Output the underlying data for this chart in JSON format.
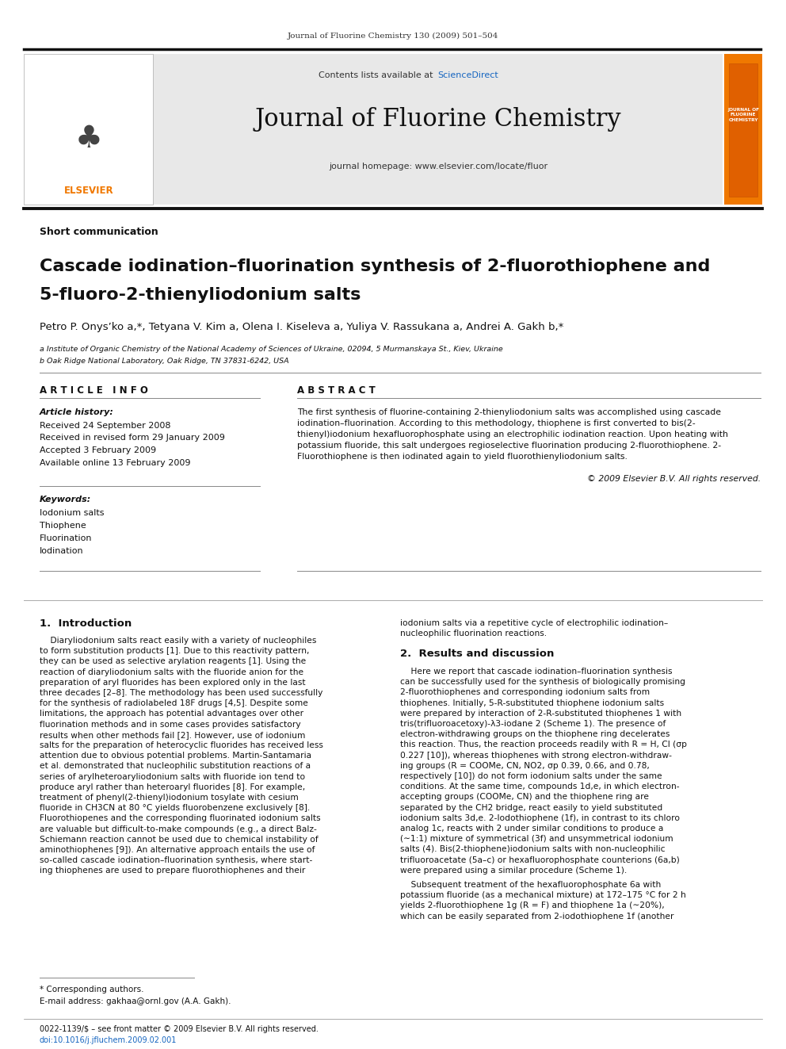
{
  "page_width": 9.92,
  "page_height": 13.23,
  "bg_color": "#ffffff",
  "journal_ref": "Journal of Fluorine Chemistry 130 (2009) 501–504",
  "header_bg": "#e8e8e8",
  "sciencedirect_color": "#1565c0",
  "link_color": "#1565c0",
  "orange_color": "#f07800",
  "section_type": "Short communication",
  "article_title_line1": "Cascade iodination–fluorination synthesis of 2-fluorothiophene and",
  "article_title_line2": "5-fluoro-2-thienyliodonium salts",
  "authors": "Petro P. Onys’ko a,*, Tetyana V. Kim a, Olena I. Kiseleva a, Yuliya V. Rassukana a, Andrei A. Gakh b,*",
  "affil_a": "a Institute of Organic Chemistry of the National Academy of Sciences of Ukraine, 02094, 5 Murmanskaya St., Kiev, Ukraine",
  "affil_b": "b Oak Ridge National Laboratory, Oak Ridge, TN 37831-6242, USA",
  "article_info_header": "A R T I C L E   I N F O",
  "abstract_header": "A B S T R A C T",
  "article_history_label": "Article history:",
  "received1": "Received 24 September 2008",
  "received2": "Received in revised form 29 January 2009",
  "accepted": "Accepted 3 February 2009",
  "available": "Available online 13 February 2009",
  "keywords_label": "Keywords:",
  "keyword1": "Iodonium salts",
  "keyword2": "Thiophene",
  "keyword3": "Fluorination",
  "keyword4": "Iodination",
  "copyright": "© 2009 Elsevier B.V. All rights reserved.",
  "footnote1": "* Corresponding authors.",
  "footnote2": "E-mail address: gakhaa@ornl.gov (A.A. Gakh).",
  "bottom_line1": "0022-1139/$ – see front matter © 2009 Elsevier B.V. All rights reserved.",
  "bottom_line2": "doi:10.1016/j.jfluchem.2009.02.001",
  "abstract_lines": [
    "The first synthesis of fluorine-containing 2-thienyliodonium salts was accomplished using cascade",
    "iodination–fluorination. According to this methodology, thiophene is first converted to bis(2-",
    "thienyl)iodonium hexafluorophosphate using an electrophilic iodination reaction. Upon heating with",
    "potassium fluoride, this salt undergoes regioselective fluorination producing 2-fluorothiophene. 2-",
    "Fluorothiophene is then iodinated again to yield fluorothienyliodonium salts."
  ],
  "intro_left_lines": [
    "    Diaryliodonium salts react easily with a variety of nucleophiles",
    "to form substitution products [1]. Due to this reactivity pattern,",
    "they can be used as selective arylation reagents [1]. Using the",
    "reaction of diaryliodonium salts with the fluoride anion for the",
    "preparation of aryl fluorides has been explored only in the last",
    "three decades [2–8]. The methodology has been used successfully",
    "for the synthesis of radiolabeled 18F drugs [4,5]. Despite some",
    "limitations, the approach has potential advantages over other",
    "fluorination methods and in some cases provides satisfactory",
    "results when other methods fail [2]. However, use of iodonium",
    "salts for the preparation of heterocyclic fluorides has received less",
    "attention due to obvious potential problems. Martin-Santamaria",
    "et al. demonstrated that nucleophilic substitution reactions of a",
    "series of arylheteroaryliodonium salts with fluoride ion tend to",
    "produce aryl rather than heteroaryl fluorides [8]. For example,",
    "treatment of phenyl(2-thienyl)iodonium tosylate with cesium",
    "fluoride in CH3CN at 80 °C yields fluorobenzene exclusively [8].",
    "Fluorothiopenes and the corresponding fluorinated iodonium salts",
    "are valuable but difficult-to-make compounds (e.g., a direct Balz-",
    "Schiemann reaction cannot be used due to chemical instability of",
    "aminothiophenes [9]). An alternative approach entails the use of",
    "so-called cascade iodination–fluorination synthesis, where start-",
    "ing thiophenes are used to prepare fluorothiophenes and their"
  ],
  "right_col_top_lines": [
    "iodonium salts via a repetitive cycle of electrophilic iodination–",
    "nucleophilic fluorination reactions."
  ],
  "results_header": "2.  Results and discussion",
  "results_right_lines": [
    "    Here we report that cascade iodination–fluorination synthesis",
    "can be successfully used for the synthesis of biologically promising",
    "2-fluorothiophenes and corresponding iodonium salts from",
    "thiophenes. Initially, 5-R-substituted thiophene iodonium salts",
    "were prepared by interaction of 2-R-substituted thiophenes 1 with",
    "tris(trifluoroacetoxy)-λ3-iodane 2 (Scheme 1). The presence of",
    "electron-withdrawing groups on the thiophene ring decelerates",
    "this reaction. Thus, the reaction proceeds readily with R = H, Cl (σp",
    "0.227 [10]), whereas thiophenes with strong electron-withdraw-",
    "ing groups (R = COOMe, CN, NO2, σp 0.39, 0.66, and 0.78,",
    "respectively [10]) do not form iodonium salts under the same",
    "conditions. At the same time, compounds 1d,e, in which electron-",
    "accepting groups (COOMe, CN) and the thiophene ring are",
    "separated by the CH2 bridge, react easily to yield substituted",
    "iodonium salts 3d,e. 2-Iodothiophene (1f), in contrast to its chloro",
    "analog 1c, reacts with 2 under similar conditions to produce a",
    "(∼1:1) mixture of symmetrical (3f) and unsymmetrical iodonium",
    "salts (4). Bis(2-thiophene)iodonium salts with non-nucleophilic",
    "trifluoroacetate (5a–c) or hexafluorophosphate counterions (6a,b)",
    "were prepared using a similar procedure (Scheme 1)."
  ],
  "results_cont_lines": [
    "    Subsequent treatment of the hexafluorophosphate 6a with",
    "potassium fluoride (as a mechanical mixture) at 172–175 °C for 2 h",
    "yields 2-fluorothiophene 1g (R = F) and thiophene 1a (∼20%),",
    "which can be easily separated from 2-iodothiophene 1f (another"
  ]
}
